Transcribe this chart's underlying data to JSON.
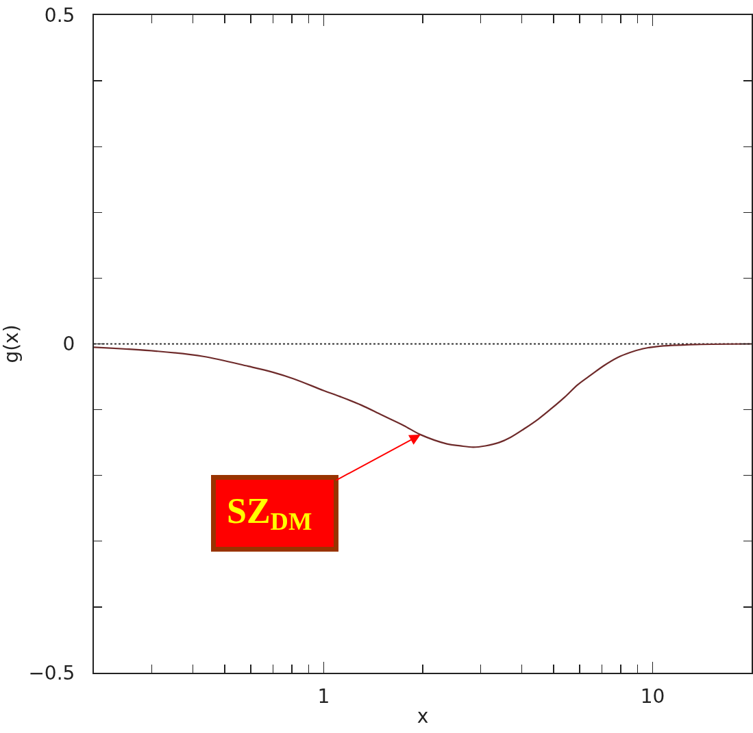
{
  "chart_data": {
    "type": "line",
    "xlabel": "x",
    "ylabel": "g(x)",
    "log": "x",
    "xlim": [
      0.2,
      20
    ],
    "xticks": [
      {
        "value": 0.3,
        "label": null
      },
      {
        "value": 0.4,
        "label": null
      },
      {
        "value": 0.5,
        "label": null
      },
      {
        "value": 0.6,
        "label": null
      },
      {
        "value": 0.7,
        "label": null
      },
      {
        "value": 0.8,
        "label": null
      },
      {
        "value": 0.9,
        "label": null
      },
      1,
      {
        "value": 2,
        "label": null
      },
      {
        "value": 3,
        "label": null
      },
      {
        "value": 4,
        "label": null
      },
      {
        "value": 5,
        "label": null
      },
      {
        "value": 6,
        "label": null
      },
      {
        "value": 7,
        "label": null
      },
      {
        "value": 8,
        "label": null
      },
      {
        "value": 9,
        "label": null
      },
      10
    ],
    "ylim": [
      -0.5,
      0.5
    ],
    "yticks": [
      {
        "value": -0.5,
        "label": "−0.5"
      },
      {
        "value": -0.4,
        "label": null
      },
      {
        "value": -0.3,
        "label": null
      },
      {
        "value": -0.2,
        "label": null
      },
      {
        "value": -0.1,
        "label": null
      },
      0,
      {
        "value": 0.1,
        "label": null
      },
      {
        "value": 0.2,
        "label": null
      },
      {
        "value": 0.3,
        "label": null
      },
      {
        "value": 0.4,
        "label": null
      },
      0.5
    ],
    "x": [
      0.2,
      0.31,
      0.43,
      0.59,
      0.7,
      0.81,
      1,
      1.12,
      1.3,
      1.5,
      1.75,
      1.97,
      2.37,
      2.6,
      2.85,
      3.1,
      3.41,
      3.7,
      4.1,
      4.5,
      4.93,
      5.4,
      5.92,
      6.5,
      7.11,
      7.8,
      8.54,
      9.4,
      10.3,
      13.5,
      20
    ],
    "series": [
      {
        "color": "#6e2a2a",
        "values": [
          -0.005,
          -0.011,
          -0.019,
          -0.034,
          -0.043,
          -0.053,
          -0.071,
          -0.08,
          -0.093,
          -0.108,
          -0.124,
          -0.138,
          -0.152,
          -0.155,
          -0.157,
          -0.155,
          -0.15,
          -0.142,
          -0.128,
          -0.114,
          -0.098,
          -0.081,
          -0.062,
          -0.047,
          -0.033,
          -0.021,
          -0.013,
          -0.007,
          -0.004,
          -0.001,
          0
        ]
      }
    ],
    "ref_lines": [
      {
        "axis": "y",
        "value": 0,
        "color": "#333333",
        "line_style": "dotted"
      }
    ],
    "annotations": [
      {
        "text": "SZ$_{DM}$",
        "x": 1.97,
        "y": -0.138
      }
    ],
    "grid": false,
    "marker": "none",
    "line_style": "solid"
  }
}
